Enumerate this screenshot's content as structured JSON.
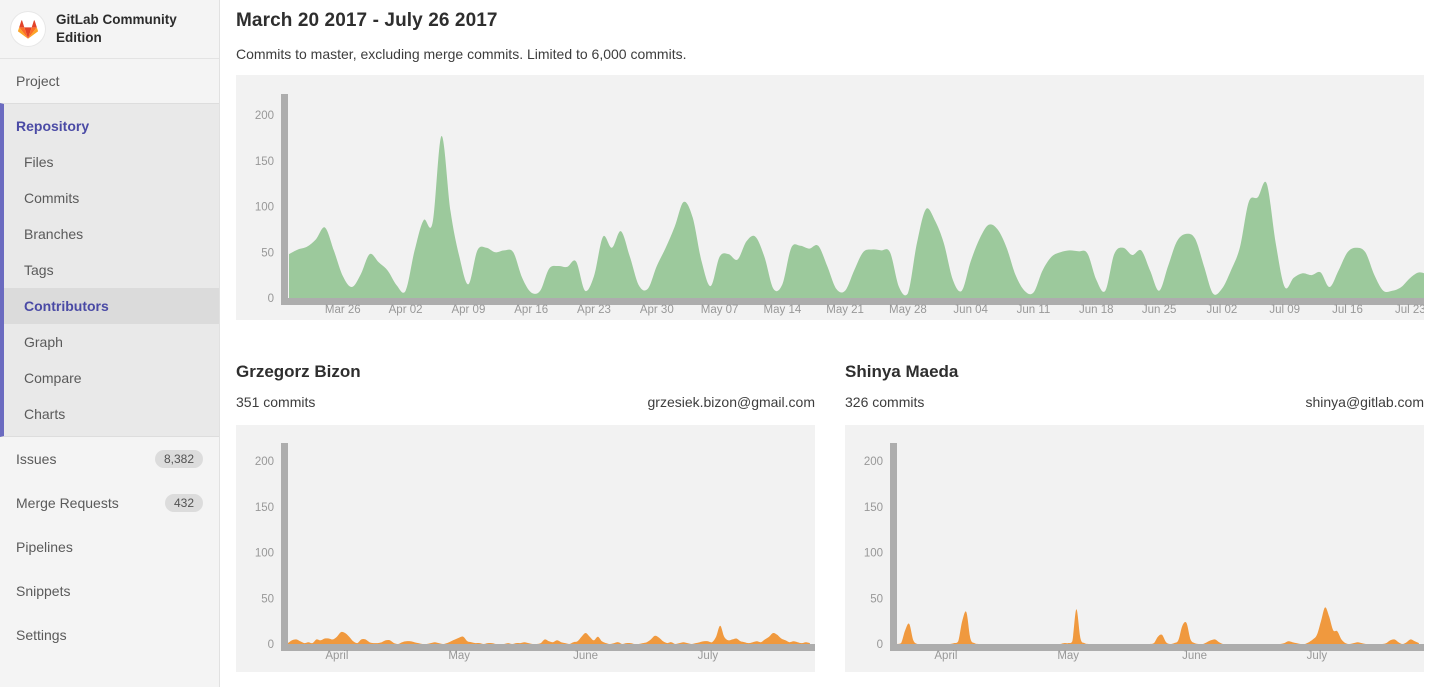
{
  "sidebar": {
    "app_title": "GitLab Community Edition",
    "top_items": [
      {
        "label": "Project"
      }
    ],
    "repo_section": {
      "label": "Repository",
      "items": [
        {
          "label": "Files"
        },
        {
          "label": "Commits"
        },
        {
          "label": "Branches"
        },
        {
          "label": "Tags"
        },
        {
          "label": "Contributors",
          "active": true
        },
        {
          "label": "Graph"
        },
        {
          "label": "Compare"
        },
        {
          "label": "Charts"
        }
      ]
    },
    "bottom_items": [
      {
        "label": "Issues",
        "badge": "8,382"
      },
      {
        "label": "Merge Requests",
        "badge": "432"
      },
      {
        "label": "Pipelines"
      },
      {
        "label": "Snippets"
      },
      {
        "label": "Settings"
      }
    ]
  },
  "main": {
    "title": "March 20 2017 - July 26 2017",
    "subtitle": "Commits to master, excluding merge commits. Limited to 6,000 commits.",
    "contributors": [
      {
        "name": "Grzegorz Bizon",
        "commits": "351 commits",
        "email": "grzesiek.bizon@gmail.com"
      },
      {
        "name": "Shinya Maeda",
        "commits": "326 commits",
        "email": "shinya@gitlab.com"
      }
    ]
  },
  "colors": {
    "area_green": "#9cc99c",
    "area_orange": "#f0993e",
    "axis_bar": "#adadad",
    "tick_text": "#989898",
    "chart_bg": "#f2f2f2",
    "accent_indigo": "#4a4aa5",
    "logo_red": "#e24329",
    "logo_orange": "#fc6d26",
    "logo_yellow": "#fca326"
  },
  "chart_data": [
    {
      "id": "master-commits-per-day",
      "type": "area",
      "color_key": "area_green",
      "x_start": "Mar 20 2017",
      "x_end": "Jul 26 2017",
      "x_unit": "day",
      "ylim": [
        0,
        218
      ],
      "y_ticks": [
        0,
        50,
        100,
        150,
        200
      ],
      "x_labels": [
        {
          "label": "Mar 26",
          "day": 6
        },
        {
          "label": "Apr 02",
          "day": 13
        },
        {
          "label": "Apr 09",
          "day": 20
        },
        {
          "label": "Apr 16",
          "day": 27
        },
        {
          "label": "Apr 23",
          "day": 34
        },
        {
          "label": "Apr 30",
          "day": 41
        },
        {
          "label": "May 07",
          "day": 48
        },
        {
          "label": "May 14",
          "day": 55
        },
        {
          "label": "May 21",
          "day": 62
        },
        {
          "label": "May 28",
          "day": 69
        },
        {
          "label": "Jun 04",
          "day": 76
        },
        {
          "label": "Jun 11",
          "day": 83
        },
        {
          "label": "Jun 18",
          "day": 90
        },
        {
          "label": "Jun 25",
          "day": 97
        },
        {
          "label": "Jul 02",
          "day": 104
        },
        {
          "label": "Jul 09",
          "day": 111
        },
        {
          "label": "Jul 16",
          "day": 118
        },
        {
          "label": "Jul 23",
          "day": 125
        }
      ],
      "values": [
        48,
        53,
        56,
        64,
        77,
        52,
        24,
        12,
        26,
        48,
        39,
        30,
        14,
        8,
        52,
        85,
        82,
        177,
        95,
        45,
        15,
        52,
        55,
        50,
        52,
        50,
        22,
        6,
        8,
        32,
        35,
        34,
        40,
        8,
        24,
        67,
        55,
        73,
        45,
        14,
        10,
        35,
        55,
        78,
        105,
        88,
        40,
        13,
        45,
        48,
        42,
        62,
        67,
        45,
        10,
        15,
        55,
        57,
        54,
        57,
        35,
        10,
        8,
        30,
        50,
        53,
        52,
        50,
        12,
        5,
        60,
        97,
        85,
        60,
        20,
        8,
        40,
        65,
        80,
        75,
        55,
        25,
        8,
        6,
        30,
        45,
        50,
        52,
        51,
        49,
        20,
        8,
        48,
        55,
        47,
        52,
        30,
        8,
        35,
        62,
        70,
        65,
        35,
        5,
        10,
        30,
        55,
        105,
        110,
        125,
        60,
        12,
        22,
        27,
        25,
        28,
        12,
        30,
        50,
        55,
        50,
        25,
        8,
        8,
        12,
        22,
        28,
        25,
        20
      ]
    },
    {
      "id": "grzegorz-bizon-commits-per-day",
      "type": "area",
      "color_key": "area_orange",
      "x_start": "Mar 20 2017",
      "x_end": "Jul 26 2017",
      "x_unit": "day",
      "ylim": [
        0,
        218
      ],
      "y_ticks": [
        0,
        50,
        100,
        150,
        200
      ],
      "x_labels": [
        {
          "label": "April",
          "day": 12
        },
        {
          "label": "May",
          "day": 42
        },
        {
          "label": "June",
          "day": 73
        },
        {
          "label": "July",
          "day": 103
        }
      ],
      "values": [
        1,
        4,
        5,
        3,
        1,
        2,
        1,
        5,
        4,
        6,
        6,
        5,
        8,
        13,
        12,
        8,
        3,
        1,
        5,
        5,
        2,
        1,
        1,
        2,
        4,
        4,
        1,
        0,
        2,
        3,
        3,
        2,
        1,
        0,
        0,
        1,
        2,
        1,
        0,
        1,
        3,
        5,
        7,
        8,
        3,
        2,
        1,
        1,
        0,
        1,
        1,
        0,
        0,
        0,
        1,
        0,
        1,
        1,
        2,
        1,
        0,
        0,
        1,
        5,
        3,
        2,
        4,
        2,
        1,
        0,
        2,
        3,
        8,
        12,
        8,
        4,
        8,
        3,
        1,
        0,
        1,
        2,
        0,
        1,
        1,
        0,
        0,
        1,
        2,
        5,
        9,
        7,
        3,
        1,
        2,
        0,
        1,
        2,
        1,
        0,
        1,
        2,
        3,
        3,
        2,
        8,
        20,
        8,
        4,
        5,
        6,
        3,
        2,
        1,
        2,
        3,
        2,
        5,
        8,
        12,
        10,
        6,
        4,
        2,
        3,
        2,
        1,
        2,
        1
      ]
    },
    {
      "id": "shinya-maeda-commits-per-day",
      "type": "area",
      "color_key": "area_orange",
      "x_start": "Mar 20 2017",
      "x_end": "Jul 26 2017",
      "x_unit": "day",
      "ylim": [
        0,
        218
      ],
      "y_ticks": [
        0,
        50,
        100,
        150,
        200
      ],
      "x_labels": [
        {
          "label": "April",
          "day": 12
        },
        {
          "label": "May",
          "day": 42
        },
        {
          "label": "June",
          "day": 73
        },
        {
          "label": "July",
          "day": 103
        }
      ],
      "values": [
        0,
        1,
        15,
        22,
        4,
        0,
        0,
        0,
        0,
        0,
        0,
        0,
        0,
        0,
        1,
        3,
        25,
        35,
        6,
        1,
        0,
        0,
        0,
        0,
        0,
        0,
        0,
        0,
        0,
        0,
        0,
        0,
        0,
        0,
        0,
        0,
        0,
        0,
        0,
        0,
        0,
        1,
        1,
        3,
        38,
        6,
        1,
        0,
        0,
        0,
        0,
        0,
        0,
        0,
        0,
        0,
        0,
        0,
        0,
        0,
        0,
        0,
        0,
        1,
        8,
        10,
        2,
        0,
        1,
        4,
        20,
        23,
        5,
        1,
        0,
        0,
        2,
        4,
        5,
        2,
        0,
        0,
        0,
        0,
        0,
        0,
        0,
        0,
        0,
        0,
        0,
        0,
        0,
        0,
        0,
        1,
        3,
        2,
        1,
        0,
        0,
        2,
        5,
        10,
        25,
        40,
        30,
        15,
        14,
        5,
        1,
        0,
        1,
        2,
        1,
        0,
        0,
        0,
        0,
        0,
        1,
        4,
        5,
        2,
        0,
        2,
        5,
        3,
        1
      ]
    }
  ]
}
